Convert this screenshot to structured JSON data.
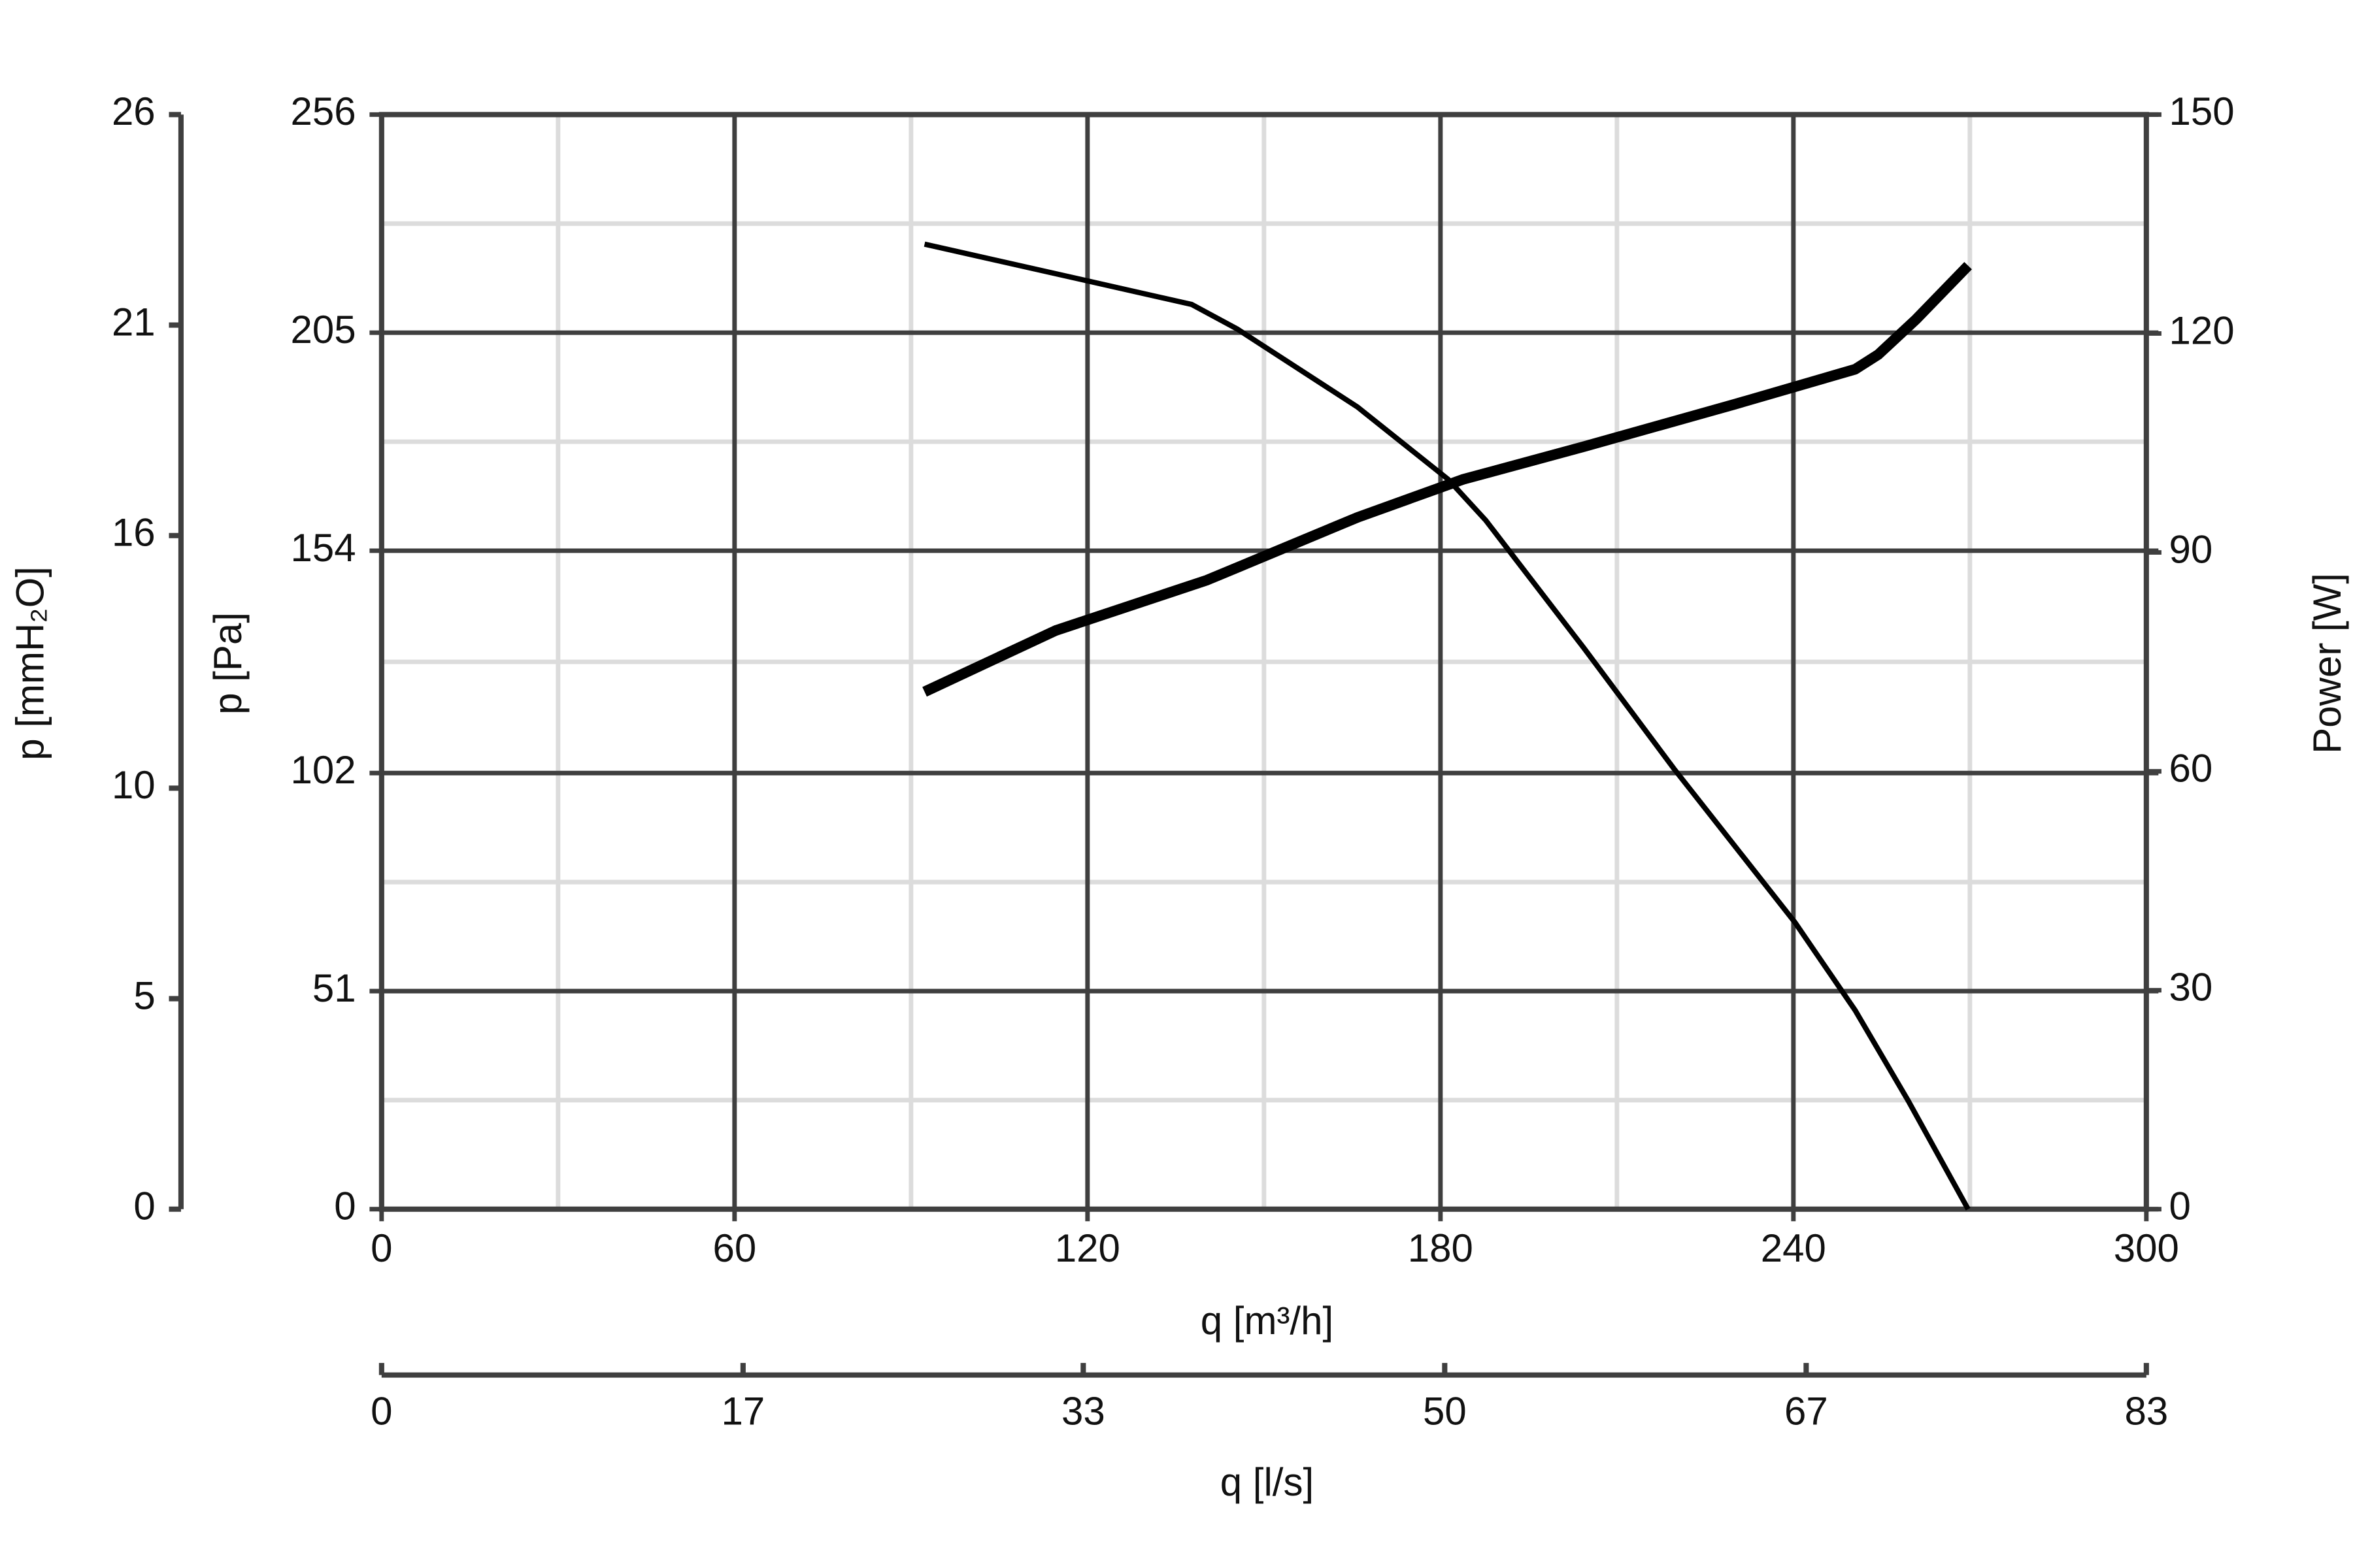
{
  "chart_data": {
    "type": "line",
    "xlabel": "q [m³/h]",
    "ylabel": "p [Pa]",
    "y2label": "Power [W]",
    "y3label": "p [mmH₂O]",
    "x2label": "q [l/s]",
    "xlim": [
      0,
      300
    ],
    "xticks": [
      0,
      60,
      120,
      180,
      240,
      300
    ],
    "ylim": [
      0,
      256
    ],
    "yticks": [
      0,
      51,
      102,
      154,
      205,
      256
    ],
    "y2lim": [
      0,
      150
    ],
    "y2ticks": [
      0,
      30,
      60,
      90,
      120,
      150
    ],
    "y3lim": [
      0,
      26
    ],
    "y3ticks": [
      0,
      5,
      10,
      16,
      21,
      26
    ],
    "x2lim": [
      0,
      83
    ],
    "x2ticks": [
      0,
      17,
      33,
      50,
      67,
      83
    ],
    "grid": true,
    "series": [
      {
        "color": "#000000",
        "x": [
          92.3,
          119.7,
          137.7,
          145.4,
          165.9,
          181.3,
          187.7,
          204.4,
          219.7,
          240.3,
          250.5,
          259.5,
          269.7
        ],
        "values": [
          225.7,
          217.2,
          211.6,
          205.9,
          187.6,
          170.7,
          161.1,
          131.2,
          103.0,
          67.0,
          46.5,
          25.4,
          0
        ]
      },
      {
        "color": "#000000",
        "axis": "y2",
        "x": [
          92.3,
          114.6,
          140.3,
          165.9,
          183.8,
          204.4,
          230,
          250.5,
          254.4,
          260.8,
          269.7
        ],
        "values": [
          70.9,
          79.3,
          86.2,
          94.8,
          100,
          104.5,
          110.3,
          115.1,
          117.1,
          121.9,
          129.3
        ]
      }
    ]
  }
}
